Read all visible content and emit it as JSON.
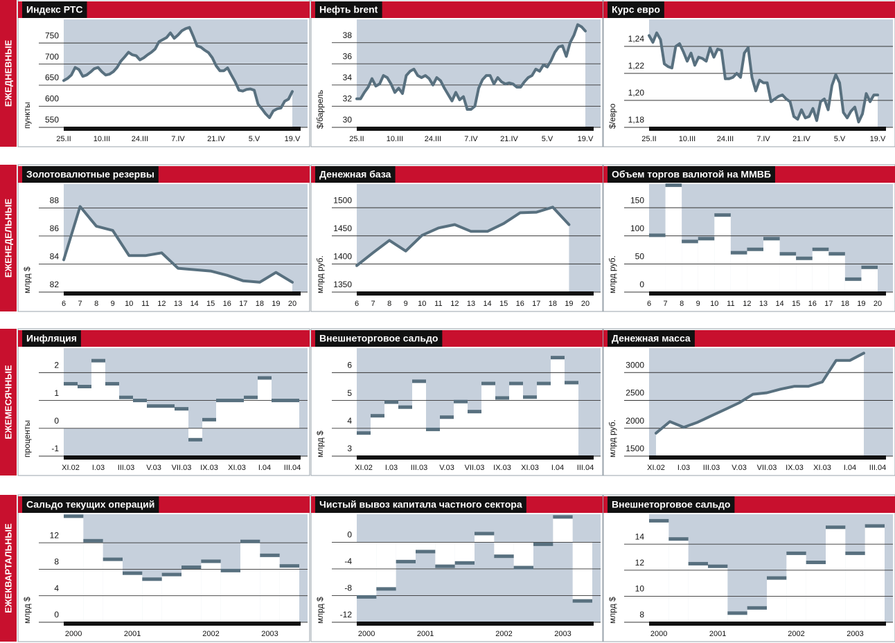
{
  "sections": [
    "ЕЖЕДНЕВНЫЕ",
    "ЕЖЕНЕДЕЛЬНЫЕ",
    "ЕЖЕМЕСЯЧНЫЕ",
    "ЕЖЕКВАРТАЛЬНЫЕ"
  ],
  "chart_data": [
    {
      "type": "line",
      "title": "Индекс РТС",
      "ylabel": "пункты",
      "color": "#58707f",
      "categories": [
        "25.II",
        null,
        null,
        null,
        null,
        null,
        null,
        null,
        null,
        null,
        "10.III",
        null,
        null,
        null,
        null,
        null,
        null,
        null,
        null,
        null,
        "24.III",
        null,
        null,
        null,
        null,
        null,
        null,
        null,
        null,
        null,
        "7.IV",
        null,
        null,
        null,
        null,
        null,
        null,
        null,
        null,
        null,
        "21.IV",
        null,
        null,
        null,
        null,
        null,
        null,
        null,
        null,
        null,
        "5.V",
        null,
        null,
        null,
        null,
        null,
        null,
        null,
        null,
        null,
        "19.V"
      ],
      "values": [
        661,
        666,
        674,
        692,
        687,
        671,
        674,
        681,
        689,
        692,
        682,
        674,
        676,
        682,
        692,
        707,
        717,
        728,
        722,
        720,
        710,
        715,
        722,
        728,
        736,
        753,
        758,
        763,
        774,
        761,
        769,
        779,
        784,
        787,
        766,
        743,
        740,
        733,
        727,
        715,
        696,
        684,
        684,
        691,
        674,
        658,
        638,
        636,
        640,
        641,
        638,
        605,
        594,
        582,
        573,
        589,
        594,
        596,
        612,
        617,
        635
      ],
      "ylim": [
        550,
        806
      ],
      "yticks": [
        550,
        600,
        650,
        700,
        750
      ]
    },
    {
      "type": "line",
      "title": "Нефть brent",
      "ylabel": "$/баррель",
      "color": "#58707f",
      "categories": [
        "25.II",
        null,
        null,
        null,
        null,
        null,
        null,
        null,
        null,
        null,
        "10.III",
        null,
        null,
        null,
        null,
        null,
        null,
        null,
        null,
        null,
        "24.III",
        null,
        null,
        null,
        null,
        null,
        null,
        null,
        null,
        null,
        "7.IV",
        null,
        null,
        null,
        null,
        null,
        null,
        null,
        null,
        null,
        "21.IV",
        null,
        null,
        null,
        null,
        null,
        null,
        null,
        null,
        null,
        "5.V",
        null,
        null,
        null,
        null,
        null,
        null,
        null,
        null,
        null,
        "19.V"
      ],
      "values": [
        32.7,
        32.7,
        33.3,
        33.8,
        34.6,
        33.9,
        34.1,
        34.9,
        34.7,
        34.1,
        33.3,
        33.7,
        33.2,
        34.9,
        35.3,
        35.5,
        34.9,
        34.7,
        34.9,
        34.6,
        34.0,
        34.7,
        34.4,
        33.7,
        33.1,
        32.5,
        33.3,
        32.6,
        32.9,
        31.7,
        31.7,
        32.0,
        33.7,
        34.5,
        34.9,
        34.9,
        34.1,
        34.7,
        34.3,
        34.1,
        34.2,
        34.1,
        33.8,
        33.8,
        34.3,
        34.7,
        34.9,
        35.5,
        35.3,
        35.9,
        35.7,
        36.3,
        37.1,
        37.6,
        37.7,
        36.7,
        38.0,
        38.7,
        39.7,
        39.5,
        39.1
      ],
      "ylim": [
        30,
        40.2
      ],
      "yticks": [
        30,
        32,
        34,
        36,
        38
      ]
    },
    {
      "type": "line",
      "title": "Курс евро",
      "ylabel": "$/евро",
      "color": "#58707f",
      "categories": [
        "25.II",
        null,
        null,
        null,
        null,
        null,
        null,
        null,
        null,
        null,
        "10.III",
        null,
        null,
        null,
        null,
        null,
        null,
        null,
        null,
        null,
        "24.III",
        null,
        null,
        null,
        null,
        null,
        null,
        null,
        null,
        null,
        "7.IV",
        null,
        null,
        null,
        null,
        null,
        null,
        null,
        null,
        null,
        "21.IV",
        null,
        null,
        null,
        null,
        null,
        null,
        null,
        null,
        null,
        "5.V",
        null,
        null,
        null,
        null,
        null,
        null,
        null,
        null,
        null,
        "19.V"
      ],
      "values": [
        1.248,
        1.243,
        1.25,
        1.245,
        1.227,
        1.225,
        1.224,
        1.24,
        1.242,
        1.236,
        1.229,
        1.235,
        1.226,
        1.232,
        1.231,
        1.229,
        1.239,
        1.232,
        1.238,
        1.237,
        1.216,
        1.216,
        1.217,
        1.22,
        1.217,
        1.235,
        1.239,
        1.217,
        1.207,
        1.215,
        1.213,
        1.213,
        1.199,
        1.201,
        1.203,
        1.204,
        1.201,
        1.199,
        1.188,
        1.186,
        1.193,
        1.187,
        1.188,
        1.194,
        1.185,
        1.199,
        1.201,
        1.193,
        1.211,
        1.219,
        1.213,
        1.191,
        1.187,
        1.192,
        1.195,
        1.184,
        1.19,
        1.205,
        1.199,
        1.204,
        1.204
      ],
      "ylim": [
        1.18,
        1.26
      ],
      "yticks": [
        {
          "value": 1.18,
          "label": "1,18"
        },
        {
          "value": 1.2,
          "label": "1,20"
        },
        {
          "value": 1.22,
          "label": "1,22"
        },
        {
          "value": 1.24,
          "label": "1,24"
        }
      ]
    },
    {
      "type": "line",
      "title": "Золотовалютные резервы",
      "ylabel": "млрд $",
      "color": "#58707f",
      "categories": [
        "6",
        "7",
        "8",
        "9",
        "10",
        "11",
        "12",
        "13",
        "14",
        "15",
        "16",
        "17",
        "18",
        "19",
        "20"
      ],
      "values": [
        84.3,
        88.1,
        86.7,
        86.4,
        84.6,
        84.6,
        84.8,
        83.7,
        83.6,
        83.5,
        83.2,
        82.8,
        82.7,
        83.4,
        82.7
      ],
      "ylim": [
        82,
        89.7
      ],
      "yticks": [
        82,
        84,
        86,
        88
      ]
    },
    {
      "type": "line",
      "title": "Денежная база",
      "ylabel": "млрд руб.",
      "color": "#58707f",
      "categories": [
        "6",
        "7",
        "8",
        "9",
        "10",
        "11",
        "12",
        "13",
        "14",
        "15",
        "16",
        "17",
        "18",
        "19",
        "20"
      ],
      "values": [
        1397,
        1420,
        1442,
        1423,
        1451,
        1464,
        1470,
        1458,
        1458,
        1472,
        1491,
        1492,
        1501,
        1470,
        null
      ],
      "ylim": [
        1350,
        1542
      ],
      "yticks": [
        1350,
        1400,
        1450,
        1500
      ]
    },
    {
      "type": "bar",
      "title": "Объем торгов валютой на ММВБ",
      "ylabel": "млрд руб.",
      "color": "#58707f",
      "categories": [
        "6",
        "7",
        "8",
        "9",
        "10",
        "11",
        "12",
        "13",
        "14",
        "15",
        "16",
        "17",
        "18",
        "19",
        "20"
      ],
      "values": [
        101,
        190,
        90,
        95,
        137,
        70,
        76,
        95,
        68,
        60,
        76,
        68,
        23,
        44,
        null
      ],
      "ylim": [
        0,
        192
      ],
      "yticks": [
        0,
        50,
        100,
        150
      ]
    },
    {
      "type": "bar",
      "title": "Инфляция",
      "ylabel": "проценты",
      "color": "#58707f",
      "categories": [
        "XI.02",
        null,
        "I.03",
        null,
        "III.03",
        null,
        "V.03",
        null,
        "VII.03",
        null,
        "IX.03",
        null,
        "XI.03",
        null,
        "I.04",
        null,
        "III.04"
      ],
      "values": [
        1.6,
        1.5,
        2.43,
        1.6,
        1.11,
        1.0,
        0.8,
        0.8,
        0.7,
        -0.41,
        0.31,
        1.0,
        1.0,
        1.11,
        1.81,
        1.0,
        1.0
      ],
      "ylim": [
        -1,
        2.88
      ],
      "yticks": [
        -1,
        0,
        1,
        2
      ]
    },
    {
      "type": "bar",
      "title": "Внешнеторговое сальдо",
      "ylabel": "млрд $",
      "color": "#58707f",
      "categories": [
        "XI.02",
        null,
        "I.03",
        null,
        "III.03",
        null,
        "V.03",
        null,
        "VII.03",
        null,
        "IX.03",
        null,
        "XI.03",
        null,
        "I.04",
        null,
        "III.04"
      ],
      "values": [
        3.83,
        4.45,
        4.94,
        4.76,
        5.69,
        3.96,
        4.4,
        4.96,
        4.6,
        5.61,
        5.09,
        5.61,
        5.12,
        5.61,
        6.54,
        5.64,
        null
      ],
      "ylim": [
        3,
        6.88
      ],
      "yticks": [
        3,
        4,
        5,
        6
      ]
    },
    {
      "type": "line",
      "title": "Денежная масса",
      "ylabel": "млрд руб.",
      "color": "#58707f",
      "categories": [
        "XI.02",
        null,
        "I.03",
        null,
        "III.03",
        null,
        "V.03",
        null,
        "VII.03",
        null,
        "IX.03",
        null,
        "XI.03",
        null,
        "I.04",
        null,
        "III.04"
      ],
      "values": [
        1913,
        2120,
        2017,
        2107,
        2224,
        2340,
        2456,
        2611,
        2637,
        2702,
        2753,
        2753,
        2831,
        3218,
        3218,
        3348,
        null
      ],
      "ylim": [
        1500,
        3438
      ],
      "yticks": [
        1500,
        2000,
        2500,
        3000
      ]
    },
    {
      "type": "bar",
      "title": "Сальдо текущих операций",
      "ylabel": "млрд $",
      "color": "#58707f",
      "categories": [
        "2000",
        null,
        null,
        "2001",
        null,
        null,
        null,
        "2002",
        null,
        null,
        "2003",
        null
      ],
      "values": [
        16.0,
        12.3,
        9.5,
        7.4,
        6.5,
        7.2,
        8.3,
        9.2,
        7.8,
        12.2,
        10.1,
        8.5
      ],
      "ylim": [
        0,
        16.3
      ],
      "yticks": [
        0,
        4,
        8,
        12
      ]
    },
    {
      "type": "bar",
      "title": "Чистый вывоз капитала частного сектора",
      "ylabel": "млрд $",
      "color": "#58707f",
      "categories": [
        "2000",
        null,
        null,
        "2001",
        null,
        null,
        null,
        "2002",
        null,
        null,
        "2003",
        null
      ],
      "values": [
        -8.2,
        -7.0,
        -2.9,
        -1.4,
        -3.6,
        -3.1,
        1.3,
        -2.1,
        -3.8,
        -0.3,
        3.8,
        -8.8
      ],
      "ylim": [
        -12,
        4.2
      ],
      "yticks": [
        -12,
        -8,
        -4,
        0
      ]
    },
    {
      "type": "bar",
      "title": "Внешнеторговое сальдо",
      "ylabel": "млрд $",
      "color": "#58707f",
      "categories": [
        "2000",
        null,
        null,
        "2001",
        null,
        null,
        null,
        "2002",
        null,
        null,
        "2003",
        null
      ],
      "values": [
        15.8,
        14.4,
        12.5,
        12.3,
        8.7,
        9.1,
        11.4,
        13.3,
        12.6,
        15.3,
        13.3,
        15.4
      ],
      "ylim": [
        8,
        16.3
      ],
      "yticks": [
        8,
        10,
        12,
        14
      ]
    }
  ]
}
